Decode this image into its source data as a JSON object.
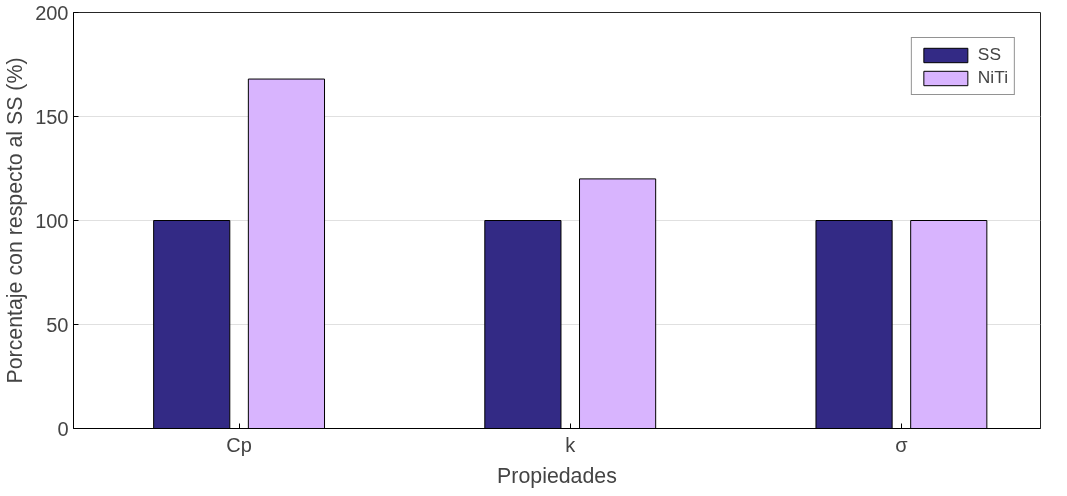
{
  "chart_data": {
    "type": "bar",
    "xlabel": "Propiedades",
    "ylabel": "Porcentaje con respecto al SS (%)",
    "categories": [
      "Cp",
      "k",
      "σ"
    ],
    "series": [
      {
        "name": "SS",
        "color": "#332a85",
        "values": [
          100,
          100,
          100
        ]
      },
      {
        "name": "NiTi",
        "color": "#d8b4fe",
        "values": [
          168,
          120,
          100
        ]
      }
    ],
    "ylim": [
      0,
      200
    ],
    "yticks": [
      0,
      50,
      100,
      150,
      200
    ],
    "grid": "y",
    "legend": "top right"
  }
}
